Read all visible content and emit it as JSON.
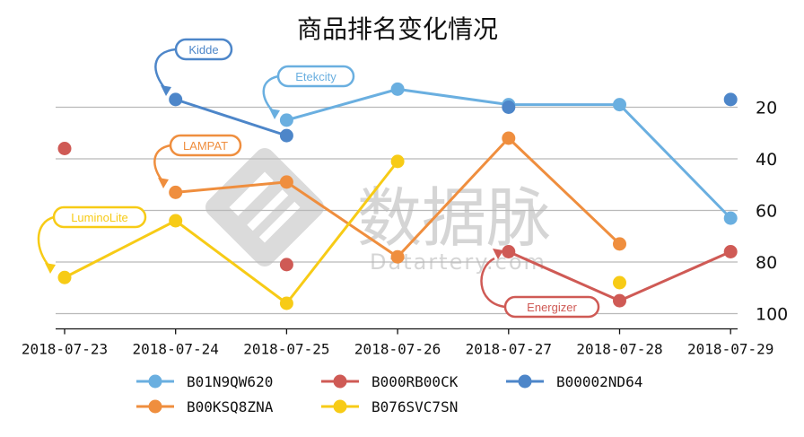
{
  "chart_data": {
    "type": "line",
    "title": "商品排名变化情况",
    "categories": [
      "2018-07-23",
      "2018-07-24",
      "2018-07-25",
      "2018-07-26",
      "2018-07-27",
      "2018-07-28",
      "2018-07-29"
    ],
    "ylim": [
      10,
      100
    ],
    "y_inverted": true,
    "y_axis_position": "right",
    "yticks": [
      20,
      40,
      60,
      80,
      100
    ],
    "grid": true,
    "legend_position": "bottom",
    "series": [
      {
        "name": "B01N9QW620",
        "color": "#6aafe0",
        "values": [
          null,
          null,
          25,
          13,
          19,
          19,
          63
        ]
      },
      {
        "name": "B00KSQ8ZNA",
        "color": "#ef8e3e",
        "values": [
          null,
          53,
          49,
          78,
          32,
          73,
          null
        ]
      },
      {
        "name": "B000RB00CK",
        "color": "#cf5a55",
        "values": [
          36,
          null,
          81,
          null,
          76,
          95,
          76
        ]
      },
      {
        "name": "B076SVC7SN",
        "color": "#f7cb16",
        "values": [
          86,
          64,
          96,
          41,
          null,
          88,
          null
        ]
      },
      {
        "name": "B00002ND64",
        "color": "#4d86c9",
        "values": [
          null,
          17,
          31,
          null,
          20,
          null,
          17
        ]
      }
    ],
    "annotations": [
      {
        "text": "Kidde",
        "series": "B00002ND64",
        "color": "#4d86c9"
      },
      {
        "text": "Etekcity",
        "series": "B01N9QW620",
        "color": "#6aafe0"
      },
      {
        "text": "LAMPAT",
        "series": "B00KSQ8ZNA",
        "color": "#ef8e3e"
      },
      {
        "text": "LuminoLite",
        "series": "B076SVC7SN",
        "color": "#f7cb16"
      },
      {
        "text": "Energizer",
        "series": "B000RB00CK",
        "color": "#cf5a55"
      }
    ]
  },
  "watermark": {
    "cn": "数据脉",
    "en": "Datartery.com"
  }
}
